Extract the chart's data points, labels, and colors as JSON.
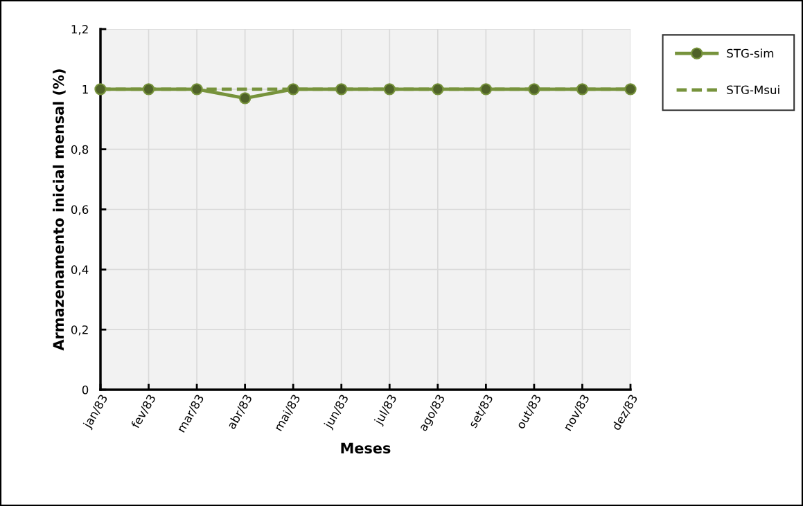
{
  "chart_data": {
    "type": "line",
    "xlabel": "Meses",
    "ylabel": "Armazenamento inicial mensal (%)",
    "categories": [
      "jan/83",
      "fev/83",
      "mar/83",
      "abr/83",
      "mai/83",
      "jun/83",
      "jul/83",
      "ago/83",
      "set/83",
      "out/83",
      "nov/83",
      "dez/83"
    ],
    "series": [
      {
        "name": "STG-sim",
        "color": "#77933c",
        "marker": "circle",
        "line_style": "solid",
        "values": [
          1,
          1,
          1,
          0.97,
          1,
          1,
          1,
          1,
          1,
          1,
          1,
          1
        ]
      },
      {
        "name": "STG-Msui",
        "color": "#77933c",
        "marker": "none",
        "line_style": "dashed",
        "values": [
          1,
          1,
          1,
          1,
          1,
          1,
          1,
          1,
          1,
          1,
          1,
          1
        ]
      }
    ],
    "ylim": [
      0,
      1.2
    ],
    "yticks": [
      0,
      {
        "value": 0.2,
        "label": "0,2"
      },
      {
        "value": 0.4,
        "label": "0,4"
      },
      {
        "value": 0.6,
        "label": "0,6"
      },
      {
        "value": 0.8,
        "label": "0,8"
      },
      1,
      {
        "value": 1.2,
        "label": "1,2"
      }
    ],
    "grid": true,
    "legend": "right"
  }
}
